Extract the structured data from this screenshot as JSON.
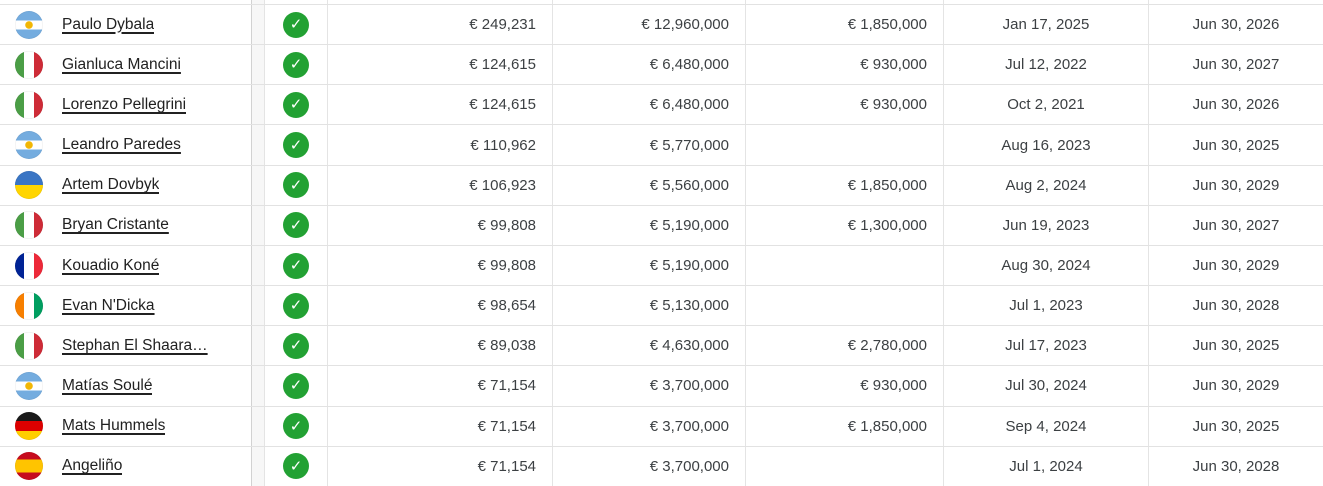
{
  "colors": {
    "verified_green": "#22a133",
    "link_text": "#212121",
    "cell_text": "#3c4043",
    "row_border": "#e2e2e2",
    "frozen_divider": "#d2d2d2"
  },
  "icons": {
    "verified_icon_glyph": "✓",
    "verified_icon_name": "check-circle"
  },
  "table": {
    "rows": [
      {
        "player": "Paulo Dybala",
        "country": "argentina",
        "verified": true,
        "weekly_wage": "€ 249,231",
        "annual_wage": "€ 12,960,000",
        "bonus": "€ 1,850,000",
        "signed": "Jan 17, 2025",
        "expires": "Jun 30, 2026"
      },
      {
        "player": "Gianluca Mancini",
        "country": "italy",
        "verified": true,
        "weekly_wage": "€ 124,615",
        "annual_wage": "€ 6,480,000",
        "bonus": "€ 930,000",
        "signed": "Jul 12, 2022",
        "expires": "Jun 30, 2027"
      },
      {
        "player": "Lorenzo Pellegrini",
        "country": "italy",
        "verified": true,
        "weekly_wage": "€ 124,615",
        "annual_wage": "€ 6,480,000",
        "bonus": "€ 930,000",
        "signed": "Oct 2, 2021",
        "expires": "Jun 30, 2026"
      },
      {
        "player": "Leandro Paredes",
        "country": "argentina",
        "verified": true,
        "weekly_wage": "€ 110,962",
        "annual_wage": "€ 5,770,000",
        "bonus": "",
        "signed": "Aug 16, 2023",
        "expires": "Jun 30, 2025"
      },
      {
        "player": "Artem Dovbyk",
        "country": "ukraine",
        "verified": true,
        "weekly_wage": "€ 106,923",
        "annual_wage": "€ 5,560,000",
        "bonus": "€ 1,850,000",
        "signed": "Aug 2, 2024",
        "expires": "Jun 30, 2029"
      },
      {
        "player": "Bryan Cristante",
        "country": "italy",
        "verified": true,
        "weekly_wage": "€ 99,808",
        "annual_wage": "€ 5,190,000",
        "bonus": "€ 1,300,000",
        "signed": "Jun 19, 2023",
        "expires": "Jun 30, 2027"
      },
      {
        "player": "Kouadio Koné",
        "country": "france",
        "verified": true,
        "weekly_wage": "€ 99,808",
        "annual_wage": "€ 5,190,000",
        "bonus": "",
        "signed": "Aug 30, 2024",
        "expires": "Jun 30, 2029"
      },
      {
        "player": "Evan N'Dicka",
        "country": "ivory-coast",
        "verified": true,
        "weekly_wage": "€ 98,654",
        "annual_wage": "€ 5,130,000",
        "bonus": "",
        "signed": "Jul 1, 2023",
        "expires": "Jun 30, 2028"
      },
      {
        "player": "Stephan El Shaara…",
        "country": "italy",
        "verified": true,
        "weekly_wage": "€ 89,038",
        "annual_wage": "€ 4,630,000",
        "bonus": "€ 2,780,000",
        "signed": "Jul 17, 2023",
        "expires": "Jun 30, 2025"
      },
      {
        "player": "Matías Soulé",
        "country": "argentina",
        "verified": true,
        "weekly_wage": "€ 71,154",
        "annual_wage": "€ 3,700,000",
        "bonus": "€ 930,000",
        "signed": "Jul 30, 2024",
        "expires": "Jun 30, 2029"
      },
      {
        "player": "Mats Hummels",
        "country": "germany",
        "verified": true,
        "weekly_wage": "€ 71,154",
        "annual_wage": "€ 3,700,000",
        "bonus": "€ 1,850,000",
        "signed": "Sep 4, 2024",
        "expires": "Jun 30, 2025"
      },
      {
        "player": "Angeliño",
        "country": "spain",
        "verified": true,
        "weekly_wage": "€ 71,154",
        "annual_wage": "€ 3,700,000",
        "bonus": "",
        "signed": "Jul 1, 2024",
        "expires": "Jun 30, 2028"
      }
    ]
  }
}
